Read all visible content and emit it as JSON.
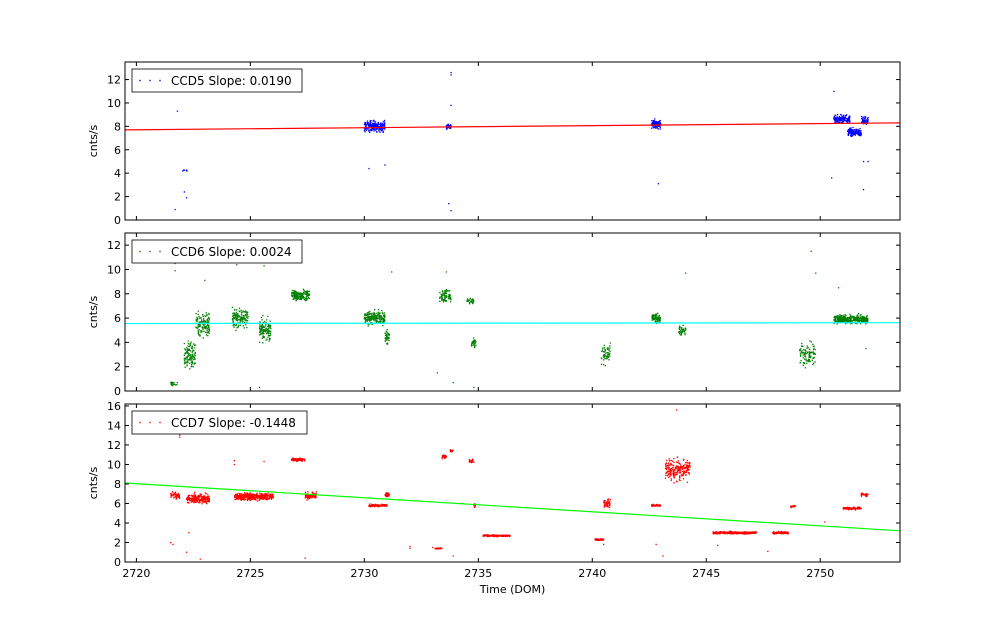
{
  "chart_data": [
    {
      "type": "scatter",
      "ylabel": "cnts/s",
      "xlim": [
        2719.5,
        2753.5
      ],
      "ylim": [
        0,
        13.5
      ],
      "yticks": [
        0,
        2,
        4,
        6,
        8,
        10,
        12
      ],
      "legend": "top-left",
      "series": [
        {
          "name": "CCD5 Slope: 0.0190",
          "color": "#0000ff",
          "clusters": [
            {
              "x": [
                2722.0,
                2722.3
              ],
              "y": 4.2,
              "spread": 0.2,
              "n": 6
            },
            {
              "x": [
                2730.0,
                2730.9
              ],
              "y": 8.0,
              "spread": 0.8,
              "n": 220
            },
            {
              "x": [
                2733.6,
                2733.8
              ],
              "y": 8.0,
              "spread": 0.4,
              "n": 40
            },
            {
              "x": [
                2742.6,
                2743.0
              ],
              "y": 8.2,
              "spread": 0.6,
              "n": 120
            },
            {
              "x": [
                2750.6,
                2751.3
              ],
              "y": 8.6,
              "spread": 0.6,
              "n": 160
            },
            {
              "x": [
                2751.2,
                2751.8
              ],
              "y": 7.5,
              "spread": 0.6,
              "n": 140
            },
            {
              "x": [
                2751.8,
                2752.1
              ],
              "y": 8.5,
              "spread": 0.5,
              "n": 60
            }
          ],
          "outliers": [
            [
              2721.7,
              0.9
            ],
            [
              2721.8,
              9.3
            ],
            [
              2722.1,
              2.4
            ],
            [
              2722.2,
              1.9
            ],
            [
              2730.2,
              4.4
            ],
            [
              2730.9,
              4.7
            ],
            [
              2733.7,
              1.4
            ],
            [
              2733.8,
              0.8
            ],
            [
              2733.8,
              9.8
            ],
            [
              2733.8,
              12.6
            ],
            [
              2733.8,
              12.4
            ],
            [
              2742.9,
              3.1
            ],
            [
              2750.5,
              3.6
            ],
            [
              2751.9,
              2.6
            ],
            [
              2751.9,
              5.0
            ],
            [
              2752.1,
              5.0
            ],
            [
              2750.6,
              11.0
            ]
          ]
        },
        {
          "name": "fit",
          "color": "#ff0000",
          "line": true,
          "x": [
            2719.5,
            2753.5
          ],
          "y": [
            7.7,
            8.3
          ]
        }
      ]
    },
    {
      "type": "scatter",
      "ylabel": "cnts/s",
      "xlim": [
        2719.5,
        2753.5
      ],
      "ylim": [
        0,
        13
      ],
      "yticks": [
        0,
        2,
        4,
        6,
        8,
        10,
        12
      ],
      "legend": "top-left",
      "series": [
        {
          "name": "CCD6 Slope: 0.0024",
          "color": "#008000",
          "clusters": [
            {
              "x": [
                2721.5,
                2721.8
              ],
              "y": 0.6,
              "spread": 0.3,
              "n": 20
            },
            {
              "x": [
                2722.1,
                2722.6
              ],
              "y": 3.0,
              "spread": 1.8,
              "n": 120
            },
            {
              "x": [
                2722.6,
                2723.2
              ],
              "y": 5.5,
              "spread": 2.0,
              "n": 130
            },
            {
              "x": [
                2724.2,
                2724.9
              ],
              "y": 6.0,
              "spread": 1.4,
              "n": 140
            },
            {
              "x": [
                2725.4,
                2725.9
              ],
              "y": 5.0,
              "spread": 1.5,
              "n": 130
            },
            {
              "x": [
                2726.8,
                2727.6
              ],
              "y": 7.9,
              "spread": 0.7,
              "n": 180
            },
            {
              "x": [
                2730.0,
                2730.9
              ],
              "y": 6.0,
              "spread": 0.9,
              "n": 200
            },
            {
              "x": [
                2730.9,
                2731.1
              ],
              "y": 4.5,
              "spread": 1.0,
              "n": 40
            },
            {
              "x": [
                2733.3,
                2733.8
              ],
              "y": 7.8,
              "spread": 1.0,
              "n": 80
            },
            {
              "x": [
                2734.5,
                2734.8
              ],
              "y": 7.4,
              "spread": 0.5,
              "n": 30
            },
            {
              "x": [
                2734.7,
                2734.9
              ],
              "y": 4.0,
              "spread": 0.6,
              "n": 30
            },
            {
              "x": [
                2740.4,
                2740.8
              ],
              "y": 3.0,
              "spread": 1.5,
              "n": 60
            },
            {
              "x": [
                2742.6,
                2743.0
              ],
              "y": 6.0,
              "spread": 0.7,
              "n": 80
            },
            {
              "x": [
                2743.8,
                2744.1
              ],
              "y": 5.0,
              "spread": 0.8,
              "n": 40
            },
            {
              "x": [
                2749.1,
                2749.8
              ],
              "y": 3.0,
              "spread": 1.5,
              "n": 100
            },
            {
              "x": [
                2750.6,
                2752.1
              ],
              "y": 5.9,
              "spread": 0.6,
              "n": 380
            }
          ],
          "outliers": [
            [
              2721.7,
              10.5
            ],
            [
              2721.7,
              9.9
            ],
            [
              2723.0,
              9.1
            ],
            [
              2724.4,
              10.4
            ],
            [
              2725.6,
              10.3
            ],
            [
              2725.4,
              0.3
            ],
            [
              2731.2,
              9.8
            ],
            [
              2733.6,
              9.8
            ],
            [
              2733.2,
              1.5
            ],
            [
              2733.9,
              0.7
            ],
            [
              2734.8,
              0.3
            ],
            [
              2744.1,
              9.7
            ],
            [
              2749.6,
              11.5
            ],
            [
              2749.8,
              9.7
            ],
            [
              2750.8,
              8.5
            ],
            [
              2752.0,
              3.5
            ]
          ]
        },
        {
          "name": "fit",
          "color": "#00ffff",
          "line": true,
          "x": [
            2719.5,
            2753.5
          ],
          "y": [
            5.55,
            5.62
          ]
        }
      ]
    },
    {
      "type": "scatter",
      "xlabel": "Time (DOM)",
      "ylabel": "cnts/s",
      "xlim": [
        2719.5,
        2753.5
      ],
      "ylim": [
        0,
        16.2
      ],
      "yticks": [
        0,
        2,
        4,
        6,
        8,
        10,
        12,
        14,
        16
      ],
      "xticks": [
        2720,
        2725,
        2730,
        2735,
        2740,
        2745,
        2750
      ],
      "legend": "top-left",
      "series": [
        {
          "name": "CCD7 Slope: -0.1448",
          "color": "#ff0000",
          "clusters": [
            {
              "x": [
                2721.5,
                2721.9
              ],
              "y": 6.8,
              "spread": 0.6,
              "n": 50
            },
            {
              "x": [
                2722.2,
                2723.2
              ],
              "y": 6.5,
              "spread": 0.8,
              "n": 220
            },
            {
              "x": [
                2724.3,
                2726.0
              ],
              "y": 6.7,
              "spread": 0.6,
              "n": 380
            },
            {
              "x": [
                2726.8,
                2727.4
              ],
              "y": 10.5,
              "spread": 0.3,
              "n": 90
            },
            {
              "x": [
                2727.4,
                2727.9
              ],
              "y": 6.8,
              "spread": 0.6,
              "n": 90
            },
            {
              "x": [
                2730.2,
                2731.0
              ],
              "y": 5.8,
              "spread": 0.2,
              "n": 120
            },
            {
              "x": [
                2730.9,
                2731.1
              ],
              "y": 6.9,
              "spread": 0.4,
              "n": 30
            },
            {
              "x": [
                2733.1,
                2733.4
              ],
              "y": 1.4,
              "spread": 0.1,
              "n": 40
            },
            {
              "x": [
                2733.4,
                2733.6
              ],
              "y": 10.8,
              "spread": 0.3,
              "n": 30
            },
            {
              "x": [
                2733.7,
                2733.9
              ],
              "y": 11.4,
              "spread": 0.3,
              "n": 15
            },
            {
              "x": [
                2734.6,
                2734.8
              ],
              "y": 10.3,
              "spread": 0.3,
              "n": 20
            },
            {
              "x": [
                2734.8,
                2734.9
              ],
              "y": 5.8,
              "spread": 0.4,
              "n": 15
            },
            {
              "x": [
                2735.2,
                2736.4
              ],
              "y": 2.7,
              "spread": 0.15,
              "n": 170
            },
            {
              "x": [
                2740.1,
                2740.5
              ],
              "y": 2.3,
              "spread": 0.15,
              "n": 50
            },
            {
              "x": [
                2740.5,
                2740.8
              ],
              "y": 6.0,
              "spread": 1.0,
              "n": 50
            },
            {
              "x": [
                2742.6,
                2743.0
              ],
              "y": 5.8,
              "spread": 0.2,
              "n": 40
            },
            {
              "x": [
                2743.2,
                2744.3
              ],
              "y": 9.5,
              "spread": 2.0,
              "n": 220
            },
            {
              "x": [
                2745.3,
                2747.2
              ],
              "y": 3.0,
              "spread": 0.2,
              "n": 300
            },
            {
              "x": [
                2747.9,
                2748.6
              ],
              "y": 3.0,
              "spread": 0.2,
              "n": 100
            },
            {
              "x": [
                2748.7,
                2748.9
              ],
              "y": 5.7,
              "spread": 0.15,
              "n": 20
            },
            {
              "x": [
                2751.0,
                2751.8
              ],
              "y": 5.5,
              "spread": 0.25,
              "n": 100
            },
            {
              "x": [
                2751.8,
                2752.1
              ],
              "y": 6.9,
              "spread": 0.3,
              "n": 30
            }
          ],
          "outliers": [
            [
              2721.5,
              2.0
            ],
            [
              2721.6,
              1.8
            ],
            [
              2721.9,
              13.0
            ],
            [
              2721.9,
              12.8
            ],
            [
              2722.3,
              3.0
            ],
            [
              2722.2,
              1.0
            ],
            [
              2722.8,
              0.3
            ],
            [
              2724.3,
              10.4
            ],
            [
              2724.3,
              10.0
            ],
            [
              2725.6,
              10.3
            ],
            [
              2727.4,
              0.4
            ],
            [
              2732.0,
              1.6
            ],
            [
              2732.0,
              1.4
            ],
            [
              2733.0,
              1.5
            ],
            [
              2733.9,
              0.6
            ],
            [
              2734.7,
              10.2
            ],
            [
              2740.5,
              1.8
            ],
            [
              2742.8,
              1.8
            ],
            [
              2743.1,
              0.6
            ],
            [
              2743.7,
              15.6
            ],
            [
              2745.5,
              1.7
            ],
            [
              2747.7,
              1.1
            ],
            [
              2750.2,
              4.1
            ]
          ]
        },
        {
          "name": "fit",
          "color": "#00ff00",
          "line": true,
          "x": [
            2719.5,
            2753.5
          ],
          "y": [
            8.1,
            3.2
          ]
        }
      ]
    }
  ]
}
